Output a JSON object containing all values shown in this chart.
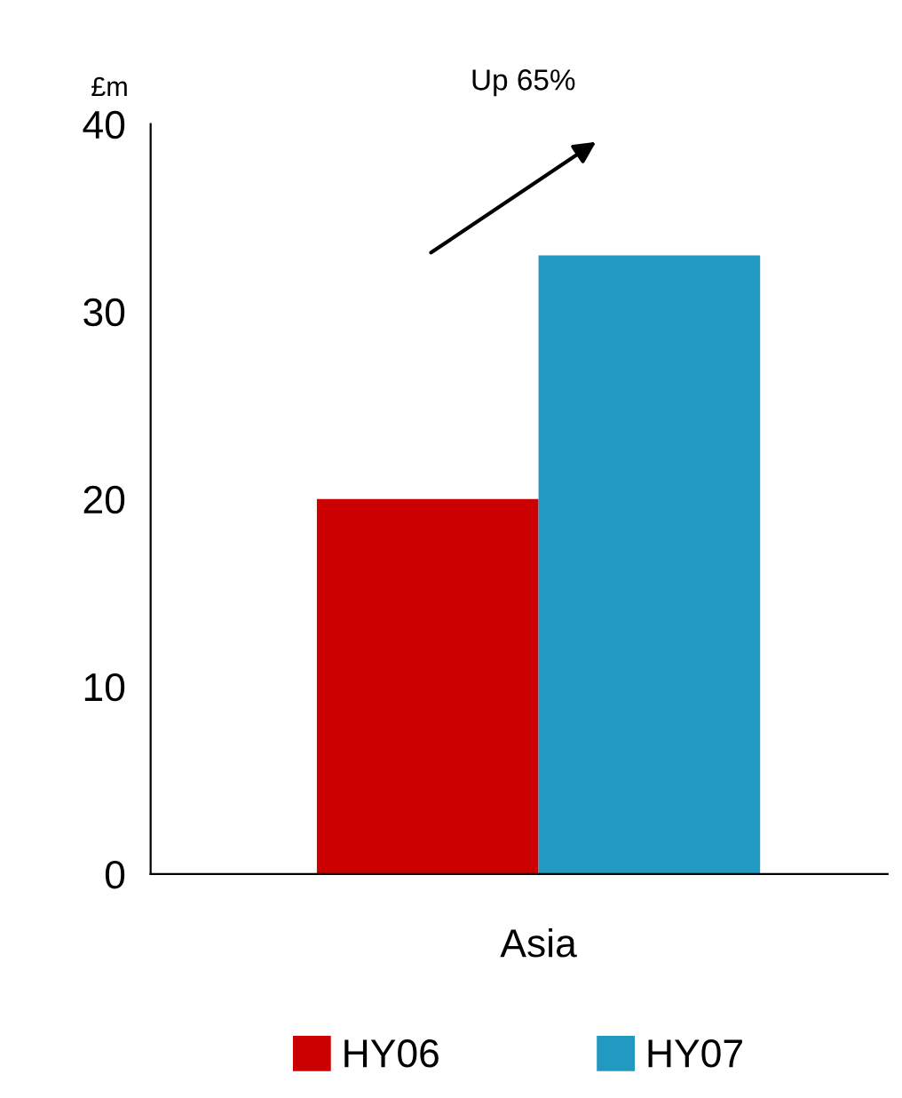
{
  "chart_data": {
    "type": "bar",
    "ylabel": "£m",
    "categories": [
      "Asia"
    ],
    "series": [
      {
        "name": "HY06",
        "color": "#cc0000",
        "values": [
          20
        ]
      },
      {
        "name": "HY07",
        "color": "#2299c0",
        "values": [
          33
        ]
      }
    ],
    "ylim": [
      0,
      40
    ],
    "yticks": [
      0,
      10,
      20,
      30,
      40
    ],
    "grid": false,
    "legend": "bottom",
    "annotations": [
      "Up 65%"
    ]
  }
}
